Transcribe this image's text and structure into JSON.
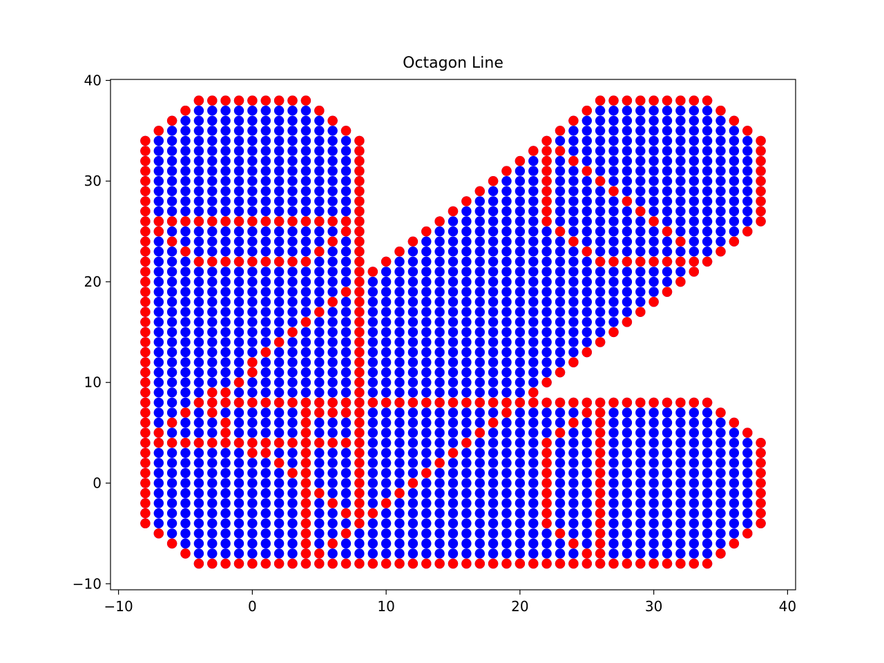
{
  "chart_data": {
    "type": "scatter",
    "title": "Octagon Line",
    "xlabel": "",
    "ylabel": "",
    "xlim": [
      -10.6,
      40.6
    ],
    "ylim": [
      -10.6,
      40.1
    ],
    "xticks": [
      -10,
      0,
      10,
      20,
      30,
      40
    ],
    "yticks": [
      -10,
      0,
      10,
      20,
      30,
      40
    ],
    "xtick_labels": [
      "−10",
      "0",
      "10",
      "20",
      "30",
      "40"
    ],
    "ytick_labels": [
      "−10",
      "0",
      "10",
      "20",
      "30",
      "40"
    ],
    "grid": false,
    "legend": "none",
    "series": [
      {
        "role": "filled-region",
        "color": "#0000ff",
        "marker": "circle",
        "description": "integer lattice points inside the filled letter-shape polygon",
        "polygon": [
          [
            -8,
            34
          ],
          [
            -7,
            35
          ],
          [
            -6,
            36
          ],
          [
            -5,
            37
          ],
          [
            -4,
            38
          ],
          [
            4,
            38
          ],
          [
            5,
            37
          ],
          [
            6,
            36
          ],
          [
            7,
            35
          ],
          [
            8,
            34
          ],
          [
            8,
            8
          ],
          [
            9,
            21
          ],
          [
            10,
            22
          ],
          [
            11,
            23
          ],
          [
            12,
            24
          ],
          [
            13,
            25
          ],
          [
            14,
            26
          ],
          [
            15,
            27
          ],
          [
            16,
            28
          ],
          [
            17,
            29
          ],
          [
            18,
            30
          ],
          [
            19,
            31
          ],
          [
            20,
            32
          ],
          [
            21,
            33
          ],
          [
            22,
            34
          ],
          [
            23,
            35
          ],
          [
            24,
            36
          ],
          [
            25,
            37
          ],
          [
            26,
            38
          ],
          [
            34,
            38
          ],
          [
            35,
            37
          ],
          [
            36,
            36
          ],
          [
            37,
            35
          ],
          [
            38,
            34
          ],
          [
            38,
            26
          ],
          [
            37,
            25
          ],
          [
            36,
            24
          ],
          [
            35,
            23
          ],
          [
            34,
            22
          ],
          [
            33,
            21
          ],
          [
            32,
            20
          ],
          [
            31,
            19
          ],
          [
            30,
            18
          ],
          [
            29,
            17
          ],
          [
            28,
            16
          ],
          [
            27,
            15
          ],
          [
            26,
            14
          ],
          [
            25,
            13
          ],
          [
            24,
            12
          ],
          [
            23,
            11
          ],
          [
            22,
            10
          ],
          [
            21,
            9
          ],
          [
            20,
            8
          ],
          [
            34,
            8
          ],
          [
            35,
            7
          ],
          [
            36,
            6
          ],
          [
            37,
            5
          ],
          [
            38,
            4
          ],
          [
            38,
            -4
          ],
          [
            37,
            -5
          ],
          [
            36,
            -6
          ],
          [
            35,
            -7
          ],
          [
            34,
            -8
          ],
          [
            -4,
            -8
          ],
          [
            -5,
            -7
          ],
          [
            -6,
            -6
          ],
          [
            -7,
            -5
          ],
          [
            -8,
            -4
          ]
        ]
      },
      {
        "role": "outline",
        "color": "#ff0000",
        "marker": "circle",
        "description": "octagon line segments drawn over the fill",
        "segments": [
          [
            [
              -8,
              -4
            ],
            [
              -8,
              34
            ]
          ],
          [
            [
              -8,
              34
            ],
            [
              -4,
              38
            ]
          ],
          [
            [
              -4,
              38
            ],
            [
              4,
              38
            ]
          ],
          [
            [
              4,
              38
            ],
            [
              8,
              34
            ]
          ],
          [
            [
              8,
              34
            ],
            [
              8,
              -4
            ]
          ],
          [
            [
              -8,
              -4
            ],
            [
              -4,
              -8
            ]
          ],
          [
            [
              -4,
              -8
            ],
            [
              34,
              -8
            ]
          ],
          [
            [
              34,
              -8
            ],
            [
              38,
              -4
            ]
          ],
          [
            [
              38,
              -4
            ],
            [
              38,
              4
            ]
          ],
          [
            [
              38,
              4
            ],
            [
              34,
              8
            ]
          ],
          [
            [
              34,
              8
            ],
            [
              -4,
              8
            ]
          ],
          [
            [
              -4,
              8
            ],
            [
              -8,
              4
            ]
          ],
          [
            [
              -8,
              4
            ],
            [
              -8,
              5
            ]
          ],
          [
            [
              -7,
              4
            ],
            [
              8,
              4
            ]
          ],
          [
            [
              9,
              21
            ],
            [
              22,
              34
            ]
          ],
          [
            [
              22,
              34
            ],
            [
              26,
              38
            ]
          ],
          [
            [
              26,
              38
            ],
            [
              34,
              38
            ]
          ],
          [
            [
              34,
              38
            ],
            [
              38,
              34
            ]
          ],
          [
            [
              38,
              34
            ],
            [
              38,
              26
            ]
          ],
          [
            [
              38,
              26
            ],
            [
              34,
              22
            ]
          ],
          [
            [
              34,
              22
            ],
            [
              33,
              21
            ]
          ],
          [
            [
              33,
              21
            ],
            [
              20,
              8
            ]
          ],
          [
            [
              -8,
              26
            ],
            [
              8,
              26
            ]
          ],
          [
            [
              -7,
              25
            ],
            [
              -4,
              22
            ]
          ],
          [
            [
              -4,
              22
            ],
            [
              4,
              22
            ]
          ],
          [
            [
              4,
              22
            ],
            [
              8,
              26
            ]
          ],
          [
            [
              2,
              14
            ],
            [
              8,
              20
            ]
          ],
          [
            [
              0,
              12
            ],
            [
              2,
              14
            ]
          ],
          [
            [
              -3,
              8
            ],
            [
              0,
              11
            ]
          ],
          [
            [
              22,
              26
            ],
            [
              22,
              34
            ]
          ],
          [
            [
              22,
              34
            ],
            [
              24,
              32
            ]
          ],
          [
            [
              24,
              32
            ],
            [
              32,
              24
            ]
          ],
          [
            [
              23,
              25
            ],
            [
              26,
              22
            ]
          ],
          [
            [
              26,
              22
            ],
            [
              33,
              22
            ]
          ],
          [
            [
              -3,
              9
            ],
            [
              -4,
              8
            ]
          ],
          [
            [
              -3,
              7
            ],
            [
              -2,
              6
            ]
          ],
          [
            [
              -2,
              5
            ],
            [
              3,
              1
            ]
          ],
          [
            [
              4,
              -8
            ],
            [
              4,
              8
            ]
          ],
          [
            [
              5,
              7
            ],
            [
              8,
              7
            ]
          ],
          [
            [
              5,
              -1
            ],
            [
              8,
              -4
            ]
          ],
          [
            [
              6,
              -6
            ],
            [
              8,
              -4
            ]
          ],
          [
            [
              5,
              -7
            ],
            [
              7,
              -5
            ]
          ],
          [
            [
              8,
              -4
            ],
            [
              18,
              6
            ]
          ],
          [
            [
              18,
              6
            ],
            [
              20,
              8
            ]
          ],
          [
            [
              22,
              -4
            ],
            [
              22,
              4
            ]
          ],
          [
            [
              22,
              4
            ],
            [
              26,
              8
            ]
          ],
          [
            [
              23,
              -5
            ],
            [
              26,
              -8
            ]
          ],
          [
            [
              26,
              -8
            ],
            [
              26,
              8
            ]
          ]
        ]
      }
    ]
  }
}
